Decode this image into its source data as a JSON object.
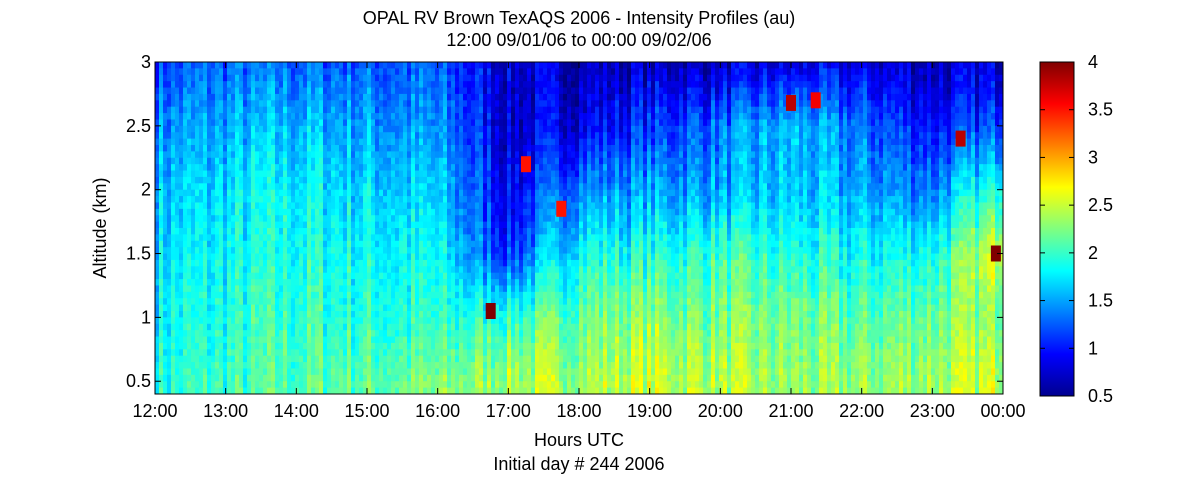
{
  "chart_data": {
    "type": "heatmap",
    "title": "OPAL RV Brown TexAQS 2006 - Intensity Profiles (au)",
    "subtitle": "12:00 09/01/06 to 00:00 09/02/06",
    "xlabel": "Hours UTC",
    "xlabel2": "Initial day # 244  2006",
    "ylabel": "Altitude (km)",
    "x_ticks": [
      "12:00",
      "13:00",
      "14:00",
      "15:00",
      "16:00",
      "17:00",
      "18:00",
      "19:00",
      "20:00",
      "21:00",
      "22:00",
      "23:00",
      "00:00"
    ],
    "x_range_hours": [
      12,
      24
    ],
    "y_ticks": [
      "0.5",
      "1",
      "1.5",
      "2",
      "2.5",
      "3"
    ],
    "y_range_km": [
      0.4,
      3.0
    ],
    "colorbar_ticks": [
      "0.5",
      "1",
      "1.5",
      "2",
      "2.5",
      "3",
      "3.5",
      "4"
    ],
    "color_range": [
      0.5,
      4
    ],
    "colormap": "jet",
    "grid": false,
    "approx_intensity_profile": {
      "description_rows_altitude_km": [
        0.5,
        1.0,
        1.5,
        2.0,
        2.5,
        3.0
      ],
      "times_hours": [
        12,
        14,
        16,
        17,
        18,
        19,
        20,
        21,
        22,
        23,
        24
      ],
      "values": [
        [
          1.9,
          2.1,
          2.2,
          2.4,
          2.4,
          2.5,
          2.4,
          2.3,
          2.3,
          2.4,
          2.5
        ],
        [
          1.8,
          2.0,
          1.9,
          2.0,
          2.2,
          2.3,
          2.2,
          2.2,
          2.1,
          2.2,
          2.3
        ],
        [
          1.7,
          1.9,
          1.8,
          1.1,
          1.9,
          1.9,
          2.0,
          1.9,
          1.8,
          1.9,
          2.6
        ],
        [
          1.6,
          1.8,
          1.6,
          0.9,
          1.4,
          1.5,
          1.5,
          1.6,
          1.5,
          1.4,
          2.0
        ],
        [
          1.4,
          1.6,
          1.4,
          0.8,
          0.9,
          1.1,
          1.3,
          1.6,
          1.3,
          1.0,
          1.2
        ],
        [
          1.2,
          1.3,
          1.2,
          0.8,
          0.7,
          0.7,
          0.7,
          0.8,
          0.8,
          0.7,
          0.8
        ]
      ]
    },
    "highlights": [
      {
        "time_h": 16.75,
        "alt_km": 1.05,
        "value": 4.0
      },
      {
        "time_h": 17.25,
        "alt_km": 2.2,
        "value": 3.5
      },
      {
        "time_h": 17.75,
        "alt_km": 1.85,
        "value": 3.5
      },
      {
        "time_h": 21.0,
        "alt_km": 2.68,
        "value": 3.8
      },
      {
        "time_h": 21.35,
        "alt_km": 2.7,
        "value": 3.6
      },
      {
        "time_h": 23.4,
        "alt_km": 2.4,
        "value": 3.8
      },
      {
        "time_h": 23.9,
        "alt_km": 1.5,
        "value": 4.0
      }
    ]
  }
}
